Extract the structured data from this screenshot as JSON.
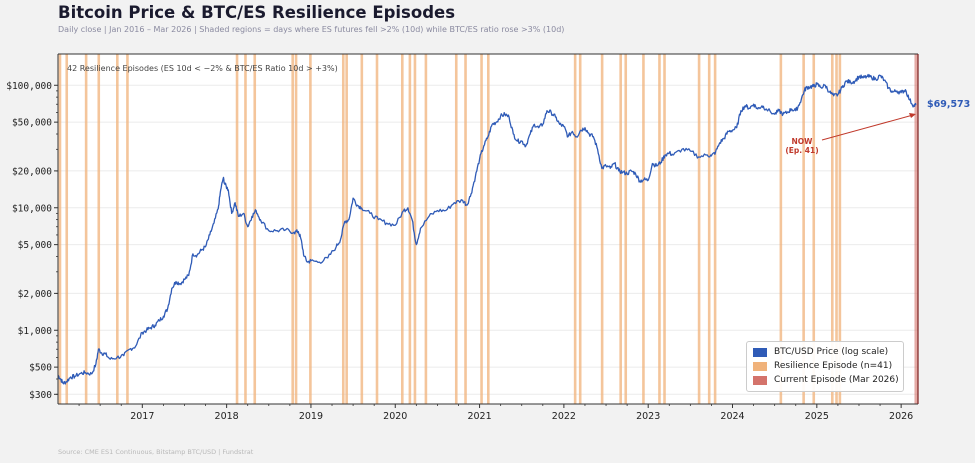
{
  "header": {
    "title": "Bitcoin Price & BTC/ES Resilience Episodes",
    "subtitle": "Daily close | Jan 2016 – Mar 2026  |  Shaded regions = days where ES futures fell >2% (10d) while BTC/ES ratio rose >3% (10d)"
  },
  "footer": {
    "source": "Source: CME ES1 Continuous, Bitstamp BTC/USD  |  Fundstrat"
  },
  "colors": {
    "price_line": "#2f5bb7",
    "episode": "#f0b27a",
    "current_episode": "#d4736b",
    "annotation": "#c0392b",
    "price_label": "#2f5bb7",
    "frame_right": "#7a1f1f"
  },
  "chart_data": {
    "type": "line",
    "title": "Bitcoin Price & BTC/ES Resilience Episodes",
    "xlabel": "",
    "ylabel": "",
    "yscale": "log",
    "xlim": [
      2016.0,
      2026.2
    ],
    "ylim": [
      250,
      180000
    ],
    "grid": true,
    "x_ticks": [
      "2017",
      "2018",
      "2019",
      "2020",
      "2021",
      "2022",
      "2023",
      "2024",
      "2025",
      "2026"
    ],
    "x_tick_values": [
      2017,
      2018,
      2019,
      2020,
      2021,
      2022,
      2023,
      2024,
      2025,
      2026
    ],
    "y_ticks": [
      "$100,000",
      "$50,000",
      "$20,000",
      "$10,000",
      "$5,000",
      "$2,000",
      "$1,000",
      "$500",
      "$300"
    ],
    "y_tick_values": [
      100000,
      50000,
      20000,
      10000,
      5000,
      2000,
      1000,
      500,
      300
    ],
    "annotation_box": "42 Resilience Episodes  (ES 10d < −2%  &  BTC/ES Ratio 10d > +3%)",
    "last_price_label": "$69,573",
    "now_label_line1": "NOW",
    "now_label_line2": "(Ep. 41)",
    "legend_position": "lower-right",
    "legend": [
      {
        "label": "BTC/USD Price (log scale)",
        "color_key": "price_line"
      },
      {
        "label": "Resilience Episode (n=41)",
        "color_key": "episode"
      },
      {
        "label": "Current Episode (Mar 2026)",
        "color_key": "current_episode"
      }
    ],
    "series": [
      {
        "name": "BTC/USD Price (log scale)",
        "x": [
          2016.0,
          2016.03,
          2016.06,
          2016.1,
          2016.15,
          2016.2,
          2016.27,
          2016.33,
          2016.4,
          2016.45,
          2016.48,
          2016.52,
          2016.56,
          2016.62,
          2016.7,
          2016.78,
          2016.85,
          2016.92,
          2017.0,
          2017.05,
          2017.1,
          2017.15,
          2017.2,
          2017.25,
          2017.3,
          2017.35,
          2017.4,
          2017.45,
          2017.5,
          2017.55,
          2017.6,
          2017.65,
          2017.7,
          2017.75,
          2017.8,
          2017.85,
          2017.9,
          2017.93,
          2017.96,
          2017.98,
          2018.02,
          2018.06,
          2018.1,
          2018.14,
          2018.2,
          2018.25,
          2018.3,
          2018.35,
          2018.4,
          2018.5,
          2018.6,
          2018.7,
          2018.8,
          2018.85,
          2018.88,
          2018.92,
          2018.96,
          2019.0,
          2019.1,
          2019.2,
          2019.3,
          2019.35,
          2019.4,
          2019.45,
          2019.5,
          2019.55,
          2019.6,
          2019.7,
          2019.8,
          2019.9,
          2020.0,
          2020.1,
          2020.15,
          2020.2,
          2020.25,
          2020.3,
          2020.4,
          2020.5,
          2020.6,
          2020.7,
          2020.8,
          2020.85,
          2020.9,
          2020.95,
          2021.0,
          2021.05,
          2021.1,
          2021.15,
          2021.2,
          2021.25,
          2021.3,
          2021.35,
          2021.4,
          2021.45,
          2021.5,
          2021.55,
          2021.6,
          2021.65,
          2021.7,
          2021.75,
          2021.8,
          2021.85,
          2021.9,
          2021.95,
          2022.0,
          2022.05,
          2022.1,
          2022.15,
          2022.2,
          2022.25,
          2022.3,
          2022.35,
          2022.4,
          2022.45,
          2022.5,
          2022.55,
          2022.6,
          2022.65,
          2022.7,
          2022.75,
          2022.8,
          2022.85,
          2022.9,
          2022.95,
          2023.0,
          2023.05,
          2023.1,
          2023.15,
          2023.2,
          2023.25,
          2023.3,
          2023.4,
          2023.5,
          2023.6,
          2023.7,
          2023.75,
          2023.8,
          2023.85,
          2023.9,
          2023.95,
          2024.0,
          2024.05,
          2024.1,
          2024.15,
          2024.2,
          2024.25,
          2024.3,
          2024.35,
          2024.4,
          2024.5,
          2024.55,
          2024.6,
          2024.65,
          2024.7,
          2024.75,
          2024.8,
          2024.85,
          2024.88,
          2024.92,
          2024.96,
          2025.0,
          2025.05,
          2025.1,
          2025.15,
          2025.2,
          2025.25,
          2025.3,
          2025.35,
          2025.4,
          2025.45,
          2025.5,
          2025.55,
          2025.6,
          2025.65,
          2025.7,
          2025.75,
          2025.8,
          2025.85,
          2025.9,
          2025.95,
          2026.0,
          2026.05,
          2026.1,
          2026.15,
          2026.18
        ],
        "y": [
          430,
          400,
          370,
          380,
          415,
          420,
          445,
          450,
          440,
          530,
          700,
          650,
          640,
          580,
          600,
          620,
          700,
          740,
          960,
          1000,
          1050,
          1100,
          1200,
          1300,
          1500,
          2200,
          2500,
          2400,
          2600,
          2800,
          4200,
          4100,
          4500,
          4800,
          6000,
          7500,
          9800,
          14000,
          17500,
          15500,
          14000,
          9000,
          11000,
          8500,
          9000,
          7000,
          8500,
          9500,
          8000,
          6500,
          6500,
          6600,
          6300,
          6400,
          5600,
          4000,
          3600,
          3700,
          3600,
          3900,
          4800,
          5500,
          7700,
          8000,
          12000,
          10500,
          10000,
          9000,
          8000,
          7500,
          7200,
          9500,
          10000,
          8000,
          5000,
          6800,
          8500,
          9500,
          9500,
          11000,
          11500,
          10500,
          13000,
          18000,
          25000,
          32000,
          38000,
          48000,
          50000,
          56000,
          58000,
          55000,
          40000,
          35000,
          35000,
          32000,
          40000,
          48000,
          45000,
          48000,
          62000,
          60000,
          55000,
          48000,
          46000,
          38000,
          42000,
          38000,
          43000,
          45000,
          40000,
          38000,
          30000,
          21000,
          22000,
          21000,
          23000,
          20000,
          19500,
          19000,
          20000,
          19000,
          16500,
          17000,
          16800,
          23000,
          22000,
          23500,
          27000,
          28000,
          27000,
          30000,
          29000,
          26000,
          27000,
          26500,
          28500,
          34000,
          37000,
          42000,
          43000,
          45000,
          62000,
          68000,
          65000,
          70000,
          64000,
          68000,
          64000,
          58000,
          62000,
          58000,
          60000,
          64000,
          62000,
          72000,
          90000,
          96000,
          97000,
          98000,
          102000,
          96000,
          100000,
          88000,
          82000,
          84000,
          96000,
          108000,
          106000,
          108000,
          118000,
          115000,
          118000,
          116000,
          112000,
          120000,
          110000,
          95000,
          88000,
          90000,
          87000,
          92000,
          76000,
          68000,
          69573
        ]
      }
    ],
    "episodes": [
      2016.02,
      2016.1,
      2016.33,
      2016.48,
      2016.7,
      2016.82,
      2018.12,
      2018.22,
      2018.33,
      2018.78,
      2018.82,
      2018.99,
      2019.38,
      2019.42,
      2019.6,
      2019.78,
      2020.08,
      2020.17,
      2020.23,
      2020.36,
      2020.72,
      2020.83,
      2021.02,
      2021.1,
      2022.13,
      2022.19,
      2022.45,
      2022.67,
      2022.73,
      2022.94,
      2023.13,
      2023.19,
      2023.6,
      2023.72,
      2023.79,
      2024.57,
      2024.84,
      2024.96,
      2025.18,
      2025.23,
      2025.27
    ],
    "current_episode": 2026.17
  }
}
